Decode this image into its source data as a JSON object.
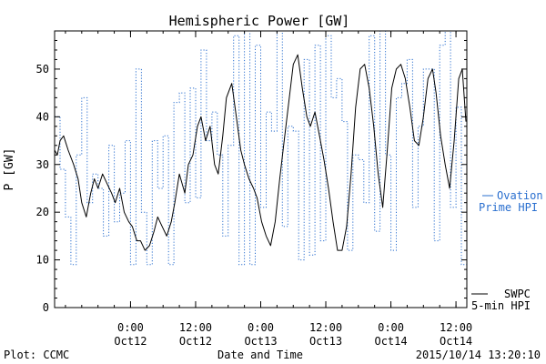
{
  "chart_data": {
    "type": "line",
    "title": "Hemispheric Power [GW]",
    "xlabel": "Date and Time",
    "ylabel": "P [GW]",
    "ylim": [
      0,
      58
    ],
    "yticks": [
      0,
      10,
      20,
      30,
      40,
      50
    ],
    "xlim": [
      "2015-10-11T10:00",
      "2015-10-14T14:00"
    ],
    "xticks": [
      {
        "t": "2015-10-12T00:00",
        "line1": "0:00",
        "line2": "Oct12"
      },
      {
        "t": "2015-10-12T12:00",
        "line1": "12:00",
        "line2": "Oct12"
      },
      {
        "t": "2015-10-13T00:00",
        "line1": "0:00",
        "line2": "Oct13"
      },
      {
        "t": "2015-10-13T12:00",
        "line1": "12:00",
        "line2": "Oct13"
      },
      {
        "t": "2015-10-14T00:00",
        "line1": "0:00",
        "line2": "Oct14"
      },
      {
        "t": "2015-10-14T12:00",
        "line1": "12:00",
        "line2": "Oct14"
      }
    ],
    "grid": false,
    "legend_placement": "right",
    "series": [
      {
        "name": "SWPC 5-min HPI",
        "label_lines": [
          "SWPC",
          "5-min HPI"
        ],
        "color": "#000000",
        "style": "solid",
        "x": [
          "2015-10-11T10:00",
          "2015-10-11T10:30",
          "2015-10-11T11:00",
          "2015-10-11T11:40",
          "2015-10-11T12:30",
          "2015-10-11T13:30",
          "2015-10-11T14:20",
          "2015-10-11T15:00",
          "2015-10-11T15:50",
          "2015-10-11T16:40",
          "2015-10-11T17:20",
          "2015-10-11T18:00",
          "2015-10-11T18:50",
          "2015-10-11T19:40",
          "2015-10-11T20:30",
          "2015-10-11T21:10",
          "2015-10-11T22:00",
          "2015-10-11T22:50",
          "2015-10-11T23:40",
          "2015-10-12T00:20",
          "2015-10-12T01:10",
          "2015-10-12T01:50",
          "2015-10-12T02:40",
          "2015-10-12T03:30",
          "2015-10-12T04:20",
          "2015-10-12T05:00",
          "2015-10-12T05:50",
          "2015-10-12T06:40",
          "2015-10-12T07:30",
          "2015-10-12T08:10",
          "2015-10-12T09:00",
          "2015-10-12T10:00",
          "2015-10-12T10:40",
          "2015-10-12T11:30",
          "2015-10-12T12:20",
          "2015-10-12T13:00",
          "2015-10-12T13:50",
          "2015-10-12T14:40",
          "2015-10-12T15:30",
          "2015-10-12T16:10",
          "2015-10-12T17:00",
          "2015-10-12T17:40",
          "2015-10-12T18:40",
          "2015-10-12T19:30",
          "2015-10-12T20:20",
          "2015-10-12T21:00",
          "2015-10-12T21:50",
          "2015-10-12T22:40",
          "2015-10-12T23:20",
          "2015-10-13T00:10",
          "2015-10-13T01:00",
          "2015-10-13T01:50",
          "2015-10-13T02:40",
          "2015-10-13T03:30",
          "2015-10-13T04:20",
          "2015-10-13T05:10",
          "2015-10-13T06:00",
          "2015-10-13T06:50",
          "2015-10-13T07:40",
          "2015-10-13T08:30",
          "2015-10-13T09:10",
          "2015-10-13T10:00",
          "2015-10-13T10:50",
          "2015-10-13T11:40",
          "2015-10-13T12:30",
          "2015-10-13T13:20",
          "2015-10-13T14:10",
          "2015-10-13T15:00",
          "2015-10-13T15:50",
          "2015-10-13T16:40",
          "2015-10-13T17:30",
          "2015-10-13T18:20",
          "2015-10-13T19:10",
          "2015-10-13T20:00",
          "2015-10-13T20:50",
          "2015-10-13T21:40",
          "2015-10-13T22:30",
          "2015-10-13T23:20",
          "2015-10-14T00:10",
          "2015-10-14T01:00",
          "2015-10-14T01:50",
          "2015-10-14T02:40",
          "2015-10-14T03:30",
          "2015-10-14T04:20",
          "2015-10-14T05:10",
          "2015-10-14T06:00",
          "2015-10-14T06:50",
          "2015-10-14T07:40",
          "2015-10-14T08:20",
          "2015-10-14T09:10",
          "2015-10-14T10:00",
          "2015-10-14T10:50",
          "2015-10-14T11:40",
          "2015-10-14T12:30",
          "2015-10-14T13:10",
          "2015-10-14T13:50"
        ],
        "y": [
          33,
          32,
          35,
          36,
          33,
          30,
          27,
          22,
          19,
          24,
          27,
          25,
          28,
          26,
          24,
          22,
          25,
          20,
          18,
          17,
          14,
          14,
          12,
          13,
          16,
          19,
          17,
          15,
          18,
          22,
          28,
          24,
          30,
          32,
          38,
          40,
          35,
          38,
          30,
          28,
          36,
          44,
          47,
          40,
          33,
          30,
          27,
          25,
          23,
          18,
          15,
          13,
          18,
          27,
          35,
          43,
          51,
          53,
          46,
          40,
          38,
          41,
          36,
          31,
          25,
          18,
          12,
          12,
          17,
          28,
          42,
          50,
          51,
          46,
          38,
          28,
          21,
          33,
          46,
          50,
          51,
          48,
          42,
          35,
          34,
          40,
          48,
          50,
          45,
          36,
          30,
          25,
          35,
          48,
          50,
          39
        ]
      },
      {
        "name": "Ovation Prime HPI",
        "label_lines": [
          "Ovation",
          "Prime HPI"
        ],
        "color": "#2a6fcf",
        "style": "dotted",
        "x": [
          "2015-10-11T10:00",
          "2015-10-11T11:00",
          "2015-10-11T12:00",
          "2015-10-11T13:00",
          "2015-10-11T14:00",
          "2015-10-11T15:00",
          "2015-10-11T16:00",
          "2015-10-11T17:00",
          "2015-10-11T18:00",
          "2015-10-11T19:00",
          "2015-10-11T20:00",
          "2015-10-11T21:00",
          "2015-10-11T22:00",
          "2015-10-11T23:00",
          "2015-10-12T00:00",
          "2015-10-12T01:00",
          "2015-10-12T02:00",
          "2015-10-12T03:00",
          "2015-10-12T04:00",
          "2015-10-12T05:00",
          "2015-10-12T06:00",
          "2015-10-12T07:00",
          "2015-10-12T08:00",
          "2015-10-12T09:00",
          "2015-10-12T10:00",
          "2015-10-12T11:00",
          "2015-10-12T12:00",
          "2015-10-12T13:00",
          "2015-10-12T14:00",
          "2015-10-12T15:00",
          "2015-10-12T16:00",
          "2015-10-12T17:00",
          "2015-10-12T18:00",
          "2015-10-12T19:00",
          "2015-10-12T20:00",
          "2015-10-12T21:00",
          "2015-10-12T22:00",
          "2015-10-12T23:00",
          "2015-10-13T00:00",
          "2015-10-13T01:00",
          "2015-10-13T02:00",
          "2015-10-13T03:00",
          "2015-10-13T04:00",
          "2015-10-13T05:00",
          "2015-10-13T06:00",
          "2015-10-13T07:00",
          "2015-10-13T08:00",
          "2015-10-13T09:00",
          "2015-10-13T10:00",
          "2015-10-13T11:00",
          "2015-10-13T12:00",
          "2015-10-13T13:00",
          "2015-10-13T14:00",
          "2015-10-13T15:00",
          "2015-10-13T16:00",
          "2015-10-13T17:00",
          "2015-10-13T18:00",
          "2015-10-13T19:00",
          "2015-10-13T20:00",
          "2015-10-13T21:00",
          "2015-10-13T22:00",
          "2015-10-13T23:00",
          "2015-10-14T00:00",
          "2015-10-14T01:00",
          "2015-10-14T02:00",
          "2015-10-14T03:00",
          "2015-10-14T04:00",
          "2015-10-14T05:00",
          "2015-10-14T06:00",
          "2015-10-14T07:00",
          "2015-10-14T08:00",
          "2015-10-14T09:00",
          "2015-10-14T10:00",
          "2015-10-14T11:00",
          "2015-10-14T12:00",
          "2015-10-14T13:00"
        ],
        "y": [
          40,
          29,
          19,
          9,
          32,
          44,
          22,
          28,
          25,
          15,
          34,
          18,
          24,
          35,
          9,
          50,
          20,
          9,
          35,
          25,
          36,
          9,
          43,
          45,
          22,
          46,
          23,
          54,
          35,
          41,
          32,
          15,
          34,
          57,
          9,
          58,
          9,
          55,
          21,
          41,
          37,
          58,
          17,
          38,
          37,
          10,
          52,
          11,
          55,
          14,
          57,
          44,
          48,
          39,
          12,
          32,
          31,
          22,
          57,
          16,
          58,
          32,
          12,
          44,
          47,
          52,
          21,
          38,
          50,
          50,
          14,
          55,
          58,
          21,
          42,
          9
        ]
      }
    ],
    "footer": {
      "left": "Plot: CCMC",
      "right": "2015/10/14 13:20:10"
    }
  }
}
